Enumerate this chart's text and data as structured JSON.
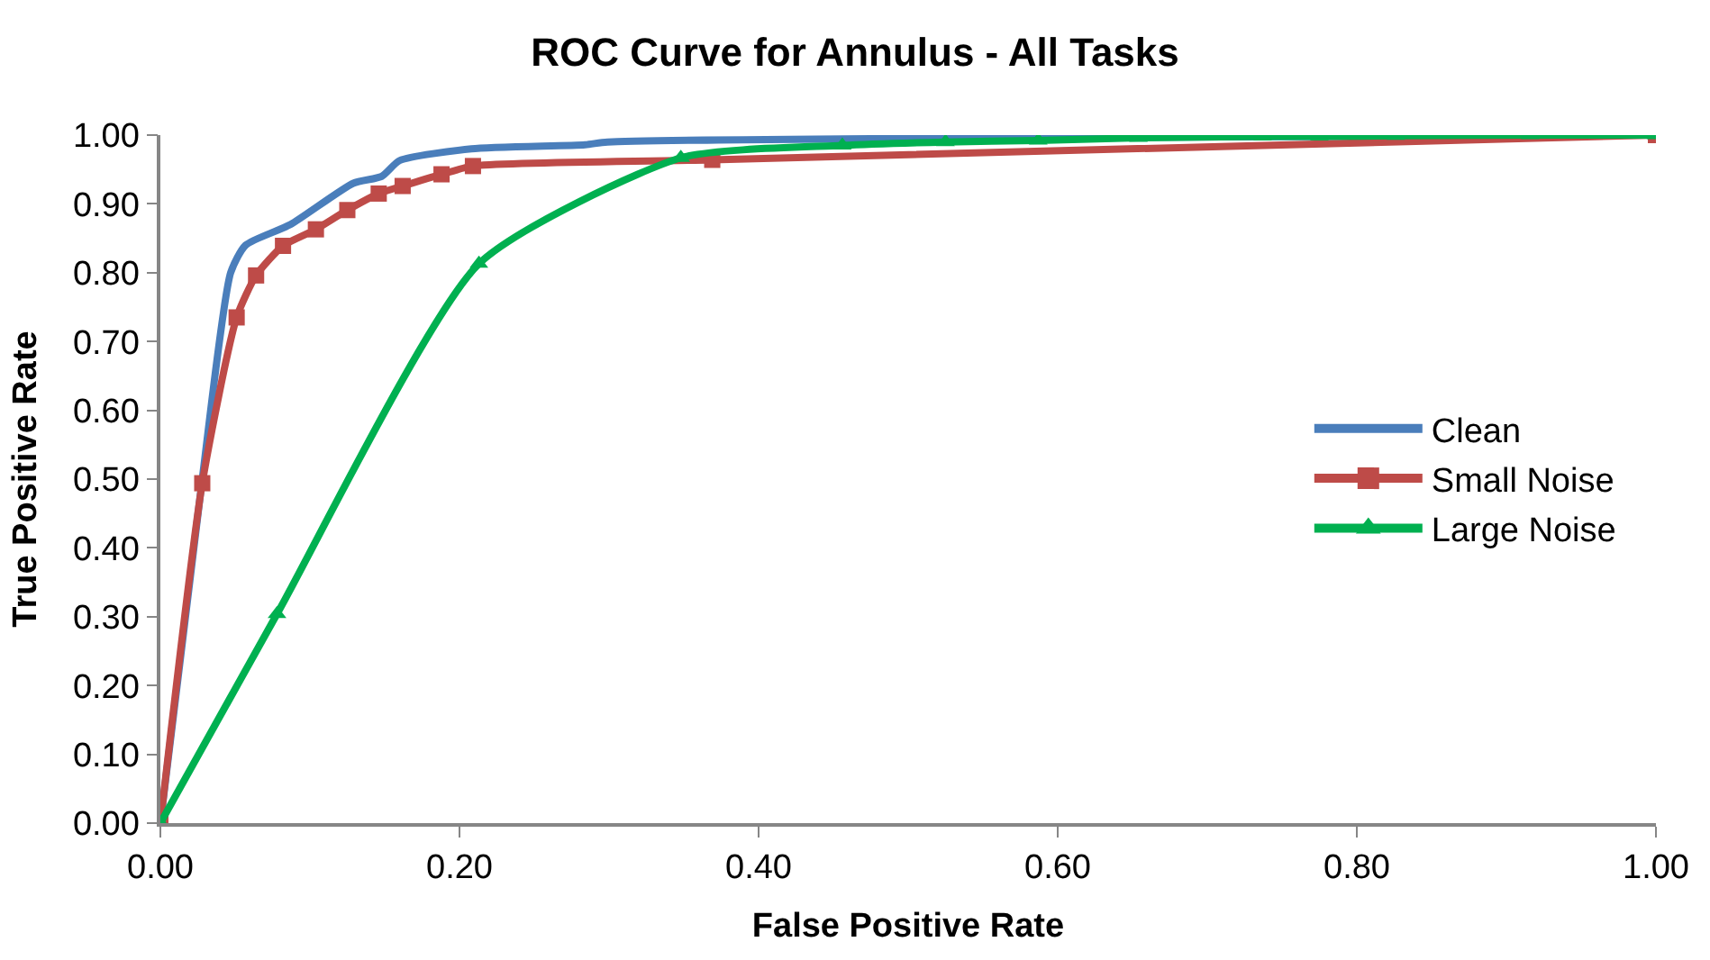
{
  "chart_data": {
    "type": "line",
    "title": "ROC Curve for Annulus - All Tasks",
    "xlabel": "False Positive Rate",
    "ylabel": "True Positive Rate",
    "xlim": [
      0,
      1
    ],
    "ylim": [
      0,
      1
    ],
    "xticks": [
      {
        "value": 0,
        "label": "0.00"
      },
      {
        "value": 0.2,
        "label": "0.20"
      },
      {
        "value": 0.4,
        "label": "0.40"
      },
      {
        "value": 0.6,
        "label": "0.60"
      },
      {
        "value": 0.8,
        "label": "0.80"
      },
      {
        "value": 1,
        "label": "1.00"
      }
    ],
    "yticks": [
      {
        "value": 0,
        "label": "0.00"
      },
      {
        "value": 0.1,
        "label": "0.10"
      },
      {
        "value": 0.2,
        "label": "0.20"
      },
      {
        "value": 0.3,
        "label": "0.30"
      },
      {
        "value": 0.4,
        "label": "0.40"
      },
      {
        "value": 0.5,
        "label": "0.50"
      },
      {
        "value": 0.6,
        "label": "0.60"
      },
      {
        "value": 0.7,
        "label": "0.70"
      },
      {
        "value": 0.8,
        "label": "0.80"
      },
      {
        "value": 0.9,
        "label": "0.90"
      },
      {
        "value": 1,
        "label": "1.00"
      }
    ],
    "legend": "right",
    "series": [
      {
        "name": "Clean",
        "color": "#4a7ebb",
        "marker": "none",
        "x": [
          0,
          0.028,
          0.047,
          0.057,
          0.087,
          0.129,
          0.148,
          0.16,
          0.208,
          0.284,
          0.299,
          1
        ],
        "values": [
          0,
          0.5,
          0.8,
          0.84,
          0.87,
          0.93,
          0.94,
          0.963,
          0.98,
          0.986,
          0.99,
          1
        ]
      },
      {
        "name": "Small Noise",
        "color": "#be4b48",
        "marker": "square",
        "x": [
          0,
          0.028,
          0.051,
          0.064,
          0.082,
          0.104,
          0.125,
          0.146,
          0.162,
          0.188,
          0.209,
          0.369,
          1
        ],
        "values": [
          0,
          0.494,
          0.735,
          0.796,
          0.839,
          0.863,
          0.891,
          0.915,
          0.926,
          0.943,
          0.955,
          0.964,
          1
        ]
      },
      {
        "name": "Large Noise",
        "color": "#00b050",
        "marker": "triangle",
        "x": [
          0,
          0.078,
          0.213,
          0.348,
          0.456,
          0.525,
          0.587,
          0.654,
          0.737,
          0.775,
          0.826,
          0.916,
          1
        ],
        "values": [
          0,
          0.304,
          0.813,
          0.967,
          0.985,
          0.99,
          0.992,
          0.996,
          0.998,
          0.998,
          0.999,
          1,
          1
        ]
      }
    ]
  }
}
